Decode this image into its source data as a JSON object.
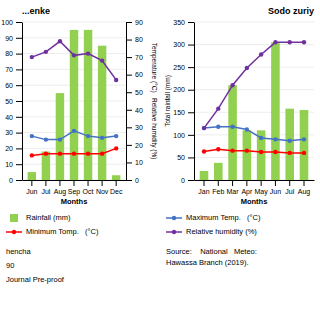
{
  "chart_data": [
    {
      "type": "bar",
      "title": "...enke",
      "categories": [
        "Jun",
        "Jul",
        "Aug",
        "Sep",
        "Oct",
        "Nov",
        "Dec"
      ],
      "xlabel": "Months",
      "y2label": "Temperature (°C)   Relative humidity (%)",
      "ylim": [
        0,
        100
      ],
      "yticks": [
        0,
        10,
        20,
        30,
        40,
        50,
        60,
        70,
        80,
        90,
        100
      ],
      "y2lim": [
        0,
        90
      ],
      "y2ticks": [
        0,
        10,
        20,
        30,
        40,
        50,
        60,
        70,
        80,
        90
      ],
      "grid": true,
      "legend": "bottom",
      "series": [
        {
          "name": "Rainfall (mm)",
          "type": "bar",
          "color": "#92d050",
          "values": [
            5,
            18,
            55,
            95,
            95,
            85,
            3
          ]
        },
        {
          "name": "Maximum Temp.   (°C)",
          "type": "line",
          "color": "#4472c4",
          "marker": "circle",
          "axis": "y2",
          "values": [
            25,
            23,
            23,
            28,
            25,
            24,
            25
          ]
        },
        {
          "name": "Minimum Tomp.   (°C)",
          "type": "line",
          "color": "#ff0000",
          "marker": "circle",
          "axis": "y2",
          "values": [
            14,
            15,
            15,
            15,
            15,
            15,
            18
          ]
        },
        {
          "name": "Relative humidity (%)",
          "type": "line",
          "color": "#7030a0",
          "marker": "circle",
          "axis": "y2",
          "values": [
            70,
            73,
            79,
            71,
            72,
            68,
            57
          ]
        }
      ],
      "annotations": [
        "hencha",
        "90",
        "Journal Pre-proof"
      ]
    },
    {
      "type": "bar",
      "title": "Sodo zuriy",
      "categories": [
        "Jan",
        "Feb",
        "Mar",
        "Apr",
        "May",
        "Jun",
        "Jul",
        "Aug"
      ],
      "xlabel": "Months",
      "ylabel": "Total rainfall (mm)",
      "ylim": [
        0,
        350
      ],
      "yticks": [
        0,
        50,
        100,
        150,
        200,
        250,
        300,
        350
      ],
      "grid": true,
      "series": [
        {
          "type": "bar",
          "color": "#92d050",
          "values": [
            20,
            38,
            210,
            110,
            110,
            305,
            158,
            155
          ]
        },
        {
          "type": "line",
          "color": "#4472c4",
          "marker": "circle",
          "values": [
            115,
            118,
            118,
            112,
            93,
            90,
            87,
            90
          ]
        },
        {
          "type": "line",
          "color": "#ff0000",
          "marker": "circle",
          "values": [
            63,
            68,
            65,
            65,
            62,
            62,
            60,
            60
          ]
        },
        {
          "type": "line",
          "color": "#7030a0",
          "marker": "circle",
          "values": [
            115,
            158,
            210,
            248,
            278,
            305,
            305,
            305
          ]
        }
      ],
      "annotations": [
        "Source:    National   Meteo:\nHawassa Branch (2019)."
      ]
    }
  ]
}
